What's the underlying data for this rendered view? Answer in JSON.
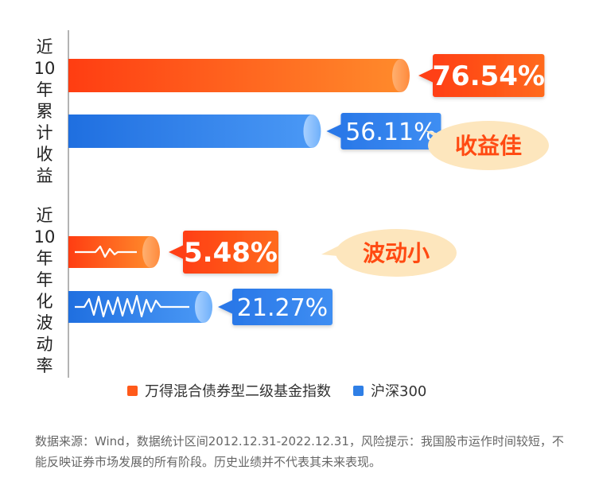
{
  "chart_data": {
    "type": "bar",
    "orientation": "horizontal",
    "groups": [
      {
        "label": "近10年累计收益",
        "values": [
          76.54,
          56.11
        ],
        "labels": [
          "76.54%",
          "56.11%"
        ],
        "callout": "收益佳"
      },
      {
        "label": "近10年年化波动率",
        "values": [
          5.48,
          21.27
        ],
        "labels": [
          "5.48%",
          "21.27%"
        ],
        "callout": "波动小"
      }
    ],
    "series": [
      {
        "name": "万得混合债券型二级基金指数",
        "color": "#ff5a1a"
      },
      {
        "name": "沪深300",
        "color": "#2f7fe6"
      }
    ]
  },
  "footnote": "数据来源：Wind，数据统计区间2012.12.31-2022.12.31，风险提示：我国股市运作时间较短，不能反映证券市场发展的所有阶段。历史业绩并不代表其未来表现。"
}
